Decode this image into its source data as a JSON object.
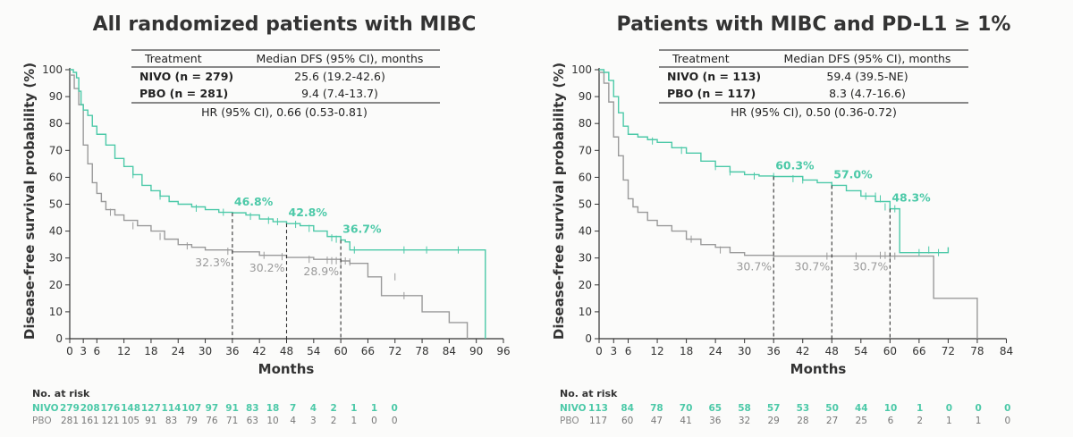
{
  "colors": {
    "nivo": "#4cc9a8",
    "pbo": "#9a9a9a",
    "text": "#333333"
  },
  "charts": [
    {
      "title": "All randomized patients with MIBC",
      "table": {
        "header": [
          "Treatment",
          "Median DFS (95% CI), months"
        ],
        "rows": [
          {
            "name": "NIVO (n = 279)",
            "value": "25.6 (19.2-42.6)",
            "series": "nivo"
          },
          {
            "name": "PBO (n = 281)",
            "value": "9.4 (7.4-13.7)",
            "series": "pbo"
          }
        ],
        "hr": "HR (95% CI), 0.66 (0.53-0.81)"
      },
      "annotations": [
        {
          "x": 36,
          "nivo_label": "46.8%",
          "pbo_label": "32.3%"
        },
        {
          "x": 48,
          "nivo_label": "42.8%",
          "pbo_label": "30.2%"
        },
        {
          "x": 60,
          "nivo_label": "36.7%",
          "pbo_label": "28.9%"
        }
      ],
      "risk": {
        "header": "No. at risk",
        "nivo_label": "NIVO",
        "pbo_label": "PBO",
        "nivo": [
          "279",
          "208",
          "176",
          "148",
          "127",
          "114",
          "107",
          "97",
          "91",
          "83",
          "18",
          "7",
          "4",
          "2",
          "1",
          "1",
          "0"
        ],
        "pbo": [
          "281",
          "161",
          "121",
          "105",
          "91",
          "83",
          "79",
          "76",
          "71",
          "63",
          "10",
          "4",
          "3",
          "2",
          "1",
          "0",
          "0"
        ]
      }
    },
    {
      "title": "Patients with MIBC and PD-L1 ≥ 1%",
      "table": {
        "header": [
          "Treatment",
          "Median DFS (95% CI), months"
        ],
        "rows": [
          {
            "name": "NIVO (n = 113)",
            "value": "59.4 (39.5-NE)",
            "series": "nivo"
          },
          {
            "name": "PBO (n = 117)",
            "value": "8.3 (4.7-16.6)",
            "series": "pbo"
          }
        ],
        "hr": "HR (95% CI), 0.50 (0.36-0.72)"
      },
      "annotations": [
        {
          "x": 36,
          "nivo_label": "60.3%",
          "pbo_label": "30.7%"
        },
        {
          "x": 48,
          "nivo_label": "57.0%",
          "pbo_label": "30.7%"
        },
        {
          "x": 60,
          "nivo_label": "48.3%",
          "pbo_label": "30.7%"
        }
      ],
      "risk": {
        "header": "No. at risk",
        "nivo_label": "NIVO",
        "pbo_label": "PBO",
        "nivo": [
          "113",
          "84",
          "78",
          "70",
          "65",
          "58",
          "57",
          "53",
          "50",
          "44",
          "10",
          "1",
          "0",
          "0",
          "0"
        ],
        "pbo": [
          "117",
          "60",
          "47",
          "41",
          "36",
          "32",
          "29",
          "28",
          "27",
          "25",
          "6",
          "2",
          "1",
          "1",
          "0"
        ]
      }
    }
  ],
  "chart_data": [
    {
      "type": "line",
      "title": "All randomized patients with MIBC",
      "xlabel": "Months",
      "ylabel": "Disease-free survival probability (%)",
      "xlim": [
        0,
        96
      ],
      "ylim": [
        0,
        100
      ],
      "xticks": [
        0,
        3,
        6,
        12,
        18,
        24,
        30,
        36,
        42,
        48,
        54,
        60,
        66,
        72,
        78,
        84,
        90,
        96
      ],
      "yticks": [
        0,
        10,
        20,
        30,
        40,
        50,
        60,
        70,
        80,
        90,
        100
      ],
      "series": [
        {
          "name": "NIVO",
          "color": "#4cc9a8",
          "points": [
            [
              0,
              100
            ],
            [
              0.8,
              99
            ],
            [
              1.5,
              97
            ],
            [
              2,
              92
            ],
            [
              2.5,
              87
            ],
            [
              3,
              85
            ],
            [
              4,
              83
            ],
            [
              5,
              79
            ],
            [
              6,
              76
            ],
            [
              8,
              72
            ],
            [
              10,
              67
            ],
            [
              12,
              64
            ],
            [
              14,
              61
            ],
            [
              16,
              57
            ],
            [
              18,
              55
            ],
            [
              20,
              53
            ],
            [
              22,
              51
            ],
            [
              24,
              50
            ],
            [
              27,
              49
            ],
            [
              30,
              48
            ],
            [
              33,
              47
            ],
            [
              36,
              46.8
            ],
            [
              39,
              46
            ],
            [
              42,
              44.5
            ],
            [
              45,
              43.5
            ],
            [
              48,
              42.8
            ],
            [
              51,
              42
            ],
            [
              54,
              40
            ],
            [
              57,
              38
            ],
            [
              60,
              36.7
            ],
            [
              61,
              36
            ],
            [
              62,
              33
            ],
            [
              92,
              33
            ],
            [
              92,
              0
            ]
          ],
          "censor": [
            [
              14,
              61
            ],
            [
              20,
              53
            ],
            [
              28,
              48.5
            ],
            [
              34,
              47
            ],
            [
              40,
              45.5
            ],
            [
              44,
              44
            ],
            [
              46,
              43.5
            ],
            [
              50,
              42.5
            ],
            [
              53,
              41
            ],
            [
              58,
              37.5
            ],
            [
              59,
              37
            ],
            [
              60,
              36.7
            ],
            [
              63,
              33
            ],
            [
              74,
              33
            ],
            [
              79,
              33
            ],
            [
              86,
              33
            ]
          ]
        },
        {
          "name": "PBO",
          "color": "#9a9a9a",
          "points": [
            [
              0,
              98
            ],
            [
              1,
              93
            ],
            [
              2,
              87
            ],
            [
              3,
              72
            ],
            [
              4,
              65
            ],
            [
              5,
              58
            ],
            [
              6,
              54
            ],
            [
              7,
              51
            ],
            [
              8,
              48
            ],
            [
              10,
              46
            ],
            [
              12,
              44
            ],
            [
              15,
              42
            ],
            [
              18,
              40
            ],
            [
              21,
              37
            ],
            [
              24,
              35
            ],
            [
              27,
              34
            ],
            [
              30,
              33
            ],
            [
              36,
              32.3
            ],
            [
              42,
              31
            ],
            [
              48,
              30.2
            ],
            [
              54,
              29.5
            ],
            [
              60,
              28.9
            ],
            [
              62,
              28
            ],
            [
              66,
              23
            ],
            [
              69,
              16
            ],
            [
              78,
              10
            ],
            [
              84,
              6
            ],
            [
              87,
              6
            ],
            [
              88,
              0
            ]
          ],
          "censor": [
            [
              9,
              47
            ],
            [
              14,
              42
            ],
            [
              20,
              38
            ],
            [
              26,
              34.5
            ],
            [
              35,
              32.5
            ],
            [
              43,
              31
            ],
            [
              47,
              30.5
            ],
            [
              53,
              29.5
            ],
            [
              57,
              29.2
            ],
            [
              58,
              29
            ],
            [
              59,
              29
            ],
            [
              60,
              28.9
            ],
            [
              61,
              28.9
            ],
            [
              62,
              28.5
            ],
            [
              72,
              23
            ],
            [
              74,
              16
            ]
          ]
        }
      ]
    },
    {
      "type": "line",
      "title": "Patients with MIBC and PD-L1 ≥ 1%",
      "xlabel": "Months",
      "ylabel": "Disease-free survival probability (%)",
      "xlim": [
        0,
        90
      ],
      "ylim": [
        0,
        100
      ],
      "xticks": [
        0,
        3,
        6,
        12,
        18,
        24,
        30,
        36,
        42,
        48,
        54,
        60,
        66,
        72,
        78,
        84
      ],
      "yticks": [
        0,
        10,
        20,
        30,
        40,
        50,
        60,
        70,
        80,
        90,
        100
      ],
      "series": [
        {
          "name": "NIVO",
          "color": "#4cc9a8",
          "points": [
            [
              0,
              100
            ],
            [
              1,
              99
            ],
            [
              2,
              96
            ],
            [
              3,
              90
            ],
            [
              4,
              84
            ],
            [
              5,
              79
            ],
            [
              6,
              76
            ],
            [
              8,
              75
            ],
            [
              10,
              74
            ],
            [
              12,
              73
            ],
            [
              15,
              71
            ],
            [
              18,
              69
            ],
            [
              21,
              66
            ],
            [
              24,
              64
            ],
            [
              27,
              62
            ],
            [
              30,
              61
            ],
            [
              33,
              60.5
            ],
            [
              36,
              60.3
            ],
            [
              42,
              59
            ],
            [
              45,
              58
            ],
            [
              48,
              57
            ],
            [
              51,
              55
            ],
            [
              54,
              53
            ],
            [
              57,
              51
            ],
            [
              60,
              48.3
            ],
            [
              61,
              48.3
            ],
            [
              62,
              32
            ],
            [
              72,
              32
            ],
            [
              72,
              34
            ]
          ],
          "censor": [
            [
              11,
              73.5
            ],
            [
              17,
              70
            ],
            [
              24,
              64
            ],
            [
              27,
              62
            ],
            [
              32,
              60.5
            ],
            [
              36,
              60.3
            ],
            [
              40,
              59.5
            ],
            [
              42,
              59
            ],
            [
              48,
              57
            ],
            [
              55,
              53
            ],
            [
              57,
              53
            ],
            [
              58,
              52
            ],
            [
              59,
              49
            ],
            [
              60,
              48.3
            ],
            [
              61,
              48.3
            ],
            [
              66,
              32
            ],
            [
              68,
              33
            ],
            [
              70,
              32
            ]
          ]
        },
        {
          "name": "PBO",
          "color": "#9a9a9a",
          "points": [
            [
              0,
              99
            ],
            [
              1,
              95
            ],
            [
              2,
              88
            ],
            [
              3,
              75
            ],
            [
              4,
              68
            ],
            [
              5,
              59
            ],
            [
              6,
              52
            ],
            [
              7,
              49
            ],
            [
              8,
              47
            ],
            [
              10,
              44
            ],
            [
              12,
              42
            ],
            [
              15,
              40
            ],
            [
              18,
              37
            ],
            [
              21,
              35
            ],
            [
              24,
              34
            ],
            [
              27,
              32
            ],
            [
              30,
              31
            ],
            [
              36,
              30.7
            ],
            [
              48,
              30.7
            ],
            [
              60,
              30.7
            ],
            [
              69,
              30.7
            ],
            [
              69,
              15
            ],
            [
              78,
              15
            ],
            [
              78,
              0
            ]
          ],
          "censor": [
            [
              19,
              37
            ],
            [
              25,
              33
            ],
            [
              36,
              30.7
            ],
            [
              47,
              30.7
            ],
            [
              53,
              30.7
            ],
            [
              58,
              31
            ],
            [
              59,
              31
            ],
            [
              60,
              30.7
            ],
            [
              61,
              30.7
            ]
          ]
        }
      ]
    }
  ]
}
